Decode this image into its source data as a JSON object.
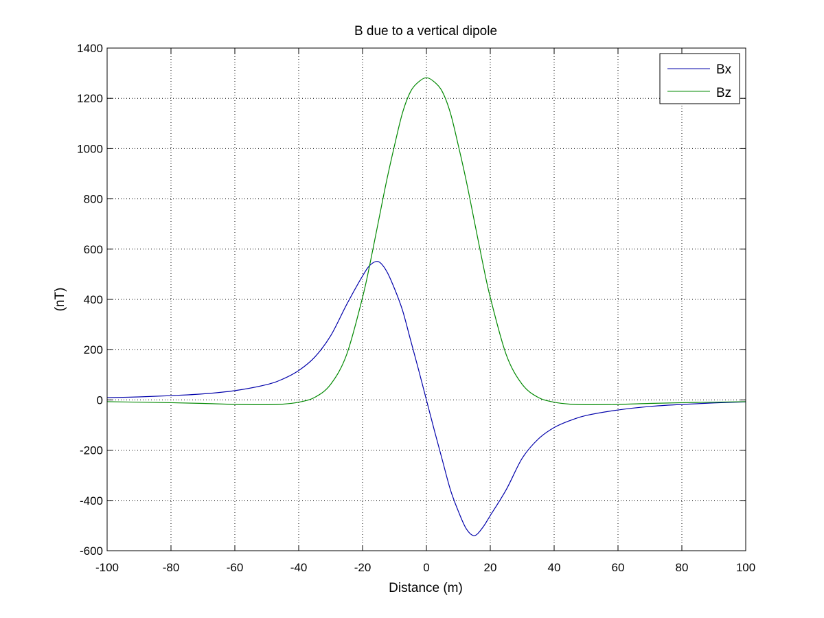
{
  "chart_data": {
    "type": "line",
    "title": "B due to a vertical dipole",
    "xlabel": "Distance (m)",
    "ylabel": "(nT)",
    "xlim": [
      -100,
      100
    ],
    "ylim": [
      -600,
      1400
    ],
    "xticks": [
      -100,
      -80,
      -60,
      -40,
      -20,
      0,
      20,
      40,
      60,
      80,
      100
    ],
    "yticks": [
      -600,
      -400,
      -200,
      0,
      200,
      400,
      600,
      800,
      1000,
      1200,
      1400
    ],
    "grid": true,
    "grid_style": "dotted",
    "legend_position": "top-right",
    "x": [
      -100,
      -90,
      -80,
      -70,
      -60,
      -50,
      -45,
      -40,
      -35,
      -30,
      -25,
      -20,
      -17.5,
      -15,
      -12.5,
      -10,
      -7.5,
      -5,
      -2.5,
      0,
      2.5,
      5,
      7.5,
      10,
      12.5,
      15,
      17.5,
      20,
      25,
      30,
      35,
      40,
      45,
      50,
      60,
      70,
      80,
      90,
      100
    ],
    "series": [
      {
        "name": "Bx",
        "color": "#0000aa",
        "values": [
          9,
          12,
          17,
          24,
          37,
          61,
          83,
          117,
          170,
          255,
          379,
          493,
          538,
          550,
          513,
          443,
          357,
          240,
          122,
          0,
          -122,
          -240,
          -357,
          -443,
          -513,
          -540,
          -510,
          -460,
          -357,
          -232,
          -156,
          -110,
          -82,
          -62,
          -40,
          -26,
          -18,
          -12,
          -8
        ]
      },
      {
        "name": "Bz",
        "color": "#008800",
        "values": [
          -7,
          -9,
          -11,
          -14,
          -18,
          -19,
          -17,
          -9,
          10,
          62,
          180,
          408,
          553,
          712,
          870,
          1012,
          1142,
          1226,
          1265,
          1282,
          1265,
          1226,
          1142,
          1012,
          870,
          712,
          553,
          408,
          180,
          62,
          10,
          -9,
          -17,
          -19,
          -18,
          -14,
          -11,
          -9,
          -7
        ]
      }
    ]
  }
}
